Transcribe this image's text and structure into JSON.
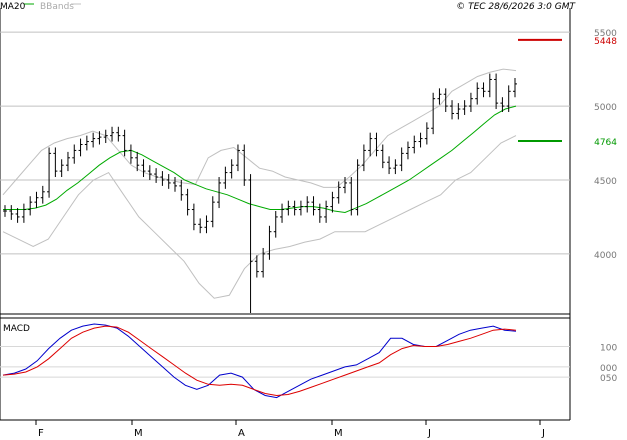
{
  "header": {
    "legend_ma": "MA20",
    "legend_bb": "BBands",
    "copyright": "© TEC 28/6/2026 3:0 GMT"
  },
  "colors": {
    "ma": "#00aa00",
    "bands": "#c0c0c0",
    "price": "#000000",
    "macd": "#0000cc",
    "signal": "#dd0000",
    "resistance": "#cc0000",
    "support": "#009900",
    "frame": "#000000",
    "grid": "#c0c0c0"
  },
  "chart_data": [
    {
      "type": "line",
      "title": "",
      "legend": [
        "MA20",
        "BBands"
      ],
      "ylim": [
        3600,
        5650
      ],
      "y_ticks": [
        4000,
        4500,
        5000,
        5500
      ],
      "y_tick_labels": [
        "4000",
        "4500",
        "5000",
        "5500"
      ],
      "x_ticks": [
        "F",
        "M",
        "A",
        "M",
        "J",
        "J"
      ],
      "levels": [
        {
          "label": "5448",
          "value": 5448,
          "color": "#cc0000"
        },
        {
          "label": "4764",
          "value": 4764,
          "color": "#009900"
        }
      ],
      "ohlc_close": [
        4290,
        4270,
        4250,
        4300,
        4350,
        4380,
        4420,
        4680,
        4560,
        4600,
        4650,
        4700,
        4740,
        4760,
        4780,
        4790,
        4800,
        4820,
        4800,
        4700,
        4650,
        4600,
        4560,
        4540,
        4520,
        4500,
        4480,
        4460,
        4400,
        4300,
        4200,
        4180,
        4220,
        4350,
        4480,
        4550,
        4600,
        4700,
        4500,
        3950,
        3880,
        4000,
        4150,
        4250,
        4300,
        4320,
        4300,
        4320,
        4350,
        4300,
        4250,
        4320,
        4380,
        4450,
        4480,
        4300,
        4600,
        4700,
        4780,
        4700,
        4620,
        4580,
        4600,
        4680,
        4720,
        4760,
        4780,
        4850,
        5050,
        5080,
        5000,
        4950,
        4980,
        5000,
        5050,
        5120,
        5100,
        5180,
        5020,
        5000,
        5100,
        5150
      ],
      "ma20": [
        4300,
        4300,
        4300,
        4310,
        4330,
        4370,
        4430,
        4480,
        4540,
        4600,
        4650,
        4690,
        4700,
        4670,
        4630,
        4590,
        4550,
        4500,
        4470,
        4440,
        4420,
        4400,
        4370,
        4340,
        4320,
        4300,
        4300,
        4310,
        4320,
        4320,
        4310,
        4290,
        4280,
        4310,
        4340,
        4380,
        4420,
        4460,
        4500,
        4550,
        4600,
        4650,
        4700,
        4760,
        4820,
        4880,
        4940,
        4980,
        5000
      ],
      "bb_upper": [
        4400,
        4500,
        4600,
        4700,
        4750,
        4780,
        4800,
        4830,
        4800,
        4700,
        4600,
        4550,
        4520,
        4500,
        4480,
        4470,
        4650,
        4700,
        4720,
        4650,
        4580,
        4560,
        4520,
        4500,
        4480,
        4450,
        4450,
        4520,
        4600,
        4700,
        4800,
        4850,
        4900,
        4950,
        5000,
        5100,
        5150,
        5200,
        5230,
        5250,
        5240
      ],
      "bb_lower": [
        4150,
        4100,
        4050,
        4100,
        4250,
        4400,
        4500,
        4550,
        4400,
        4250,
        4150,
        4050,
        3950,
        3800,
        3700,
        3720,
        3900,
        4000,
        4030,
        4050,
        4080,
        4100,
        4150,
        4150,
        4150,
        4200,
        4250,
        4300,
        4350,
        4400,
        4500,
        4550,
        4650,
        4750,
        4800
      ]
    },
    {
      "type": "line",
      "title": "MACD",
      "ylim": [
        -250,
        220
      ],
      "y_ticks": [
        100,
        0,
        -50
      ],
      "y_tick_labels": [
        "100",
        "000",
        "050"
      ],
      "series": [
        {
          "name": "",
          "values": [
            -40,
            -30,
            -10,
            30,
            90,
            140,
            180,
            200,
            210,
            205,
            190,
            150,
            100,
            50,
            0,
            -50,
            -90,
            -110,
            -90,
            -40,
            -30,
            -50,
            -110,
            -140,
            -150,
            -120,
            -90,
            -60,
            -40,
            -20,
            0,
            10,
            40,
            70,
            140,
            140,
            110,
            100,
            100,
            130,
            160,
            180,
            190,
            200,
            180,
            175
          ]
        },
        {
          "name": "",
          "values": [
            -40,
            -35,
            -25,
            0,
            40,
            90,
            140,
            170,
            190,
            200,
            195,
            170,
            130,
            90,
            50,
            10,
            -30,
            -65,
            -85,
            -90,
            -85,
            -90,
            -110,
            -130,
            -140,
            -135,
            -120,
            -100,
            -80,
            -60,
            -40,
            -20,
            0,
            20,
            60,
            90,
            105,
            100,
            100,
            110,
            125,
            140,
            160,
            180,
            185,
            180
          ]
        }
      ]
    }
  ]
}
